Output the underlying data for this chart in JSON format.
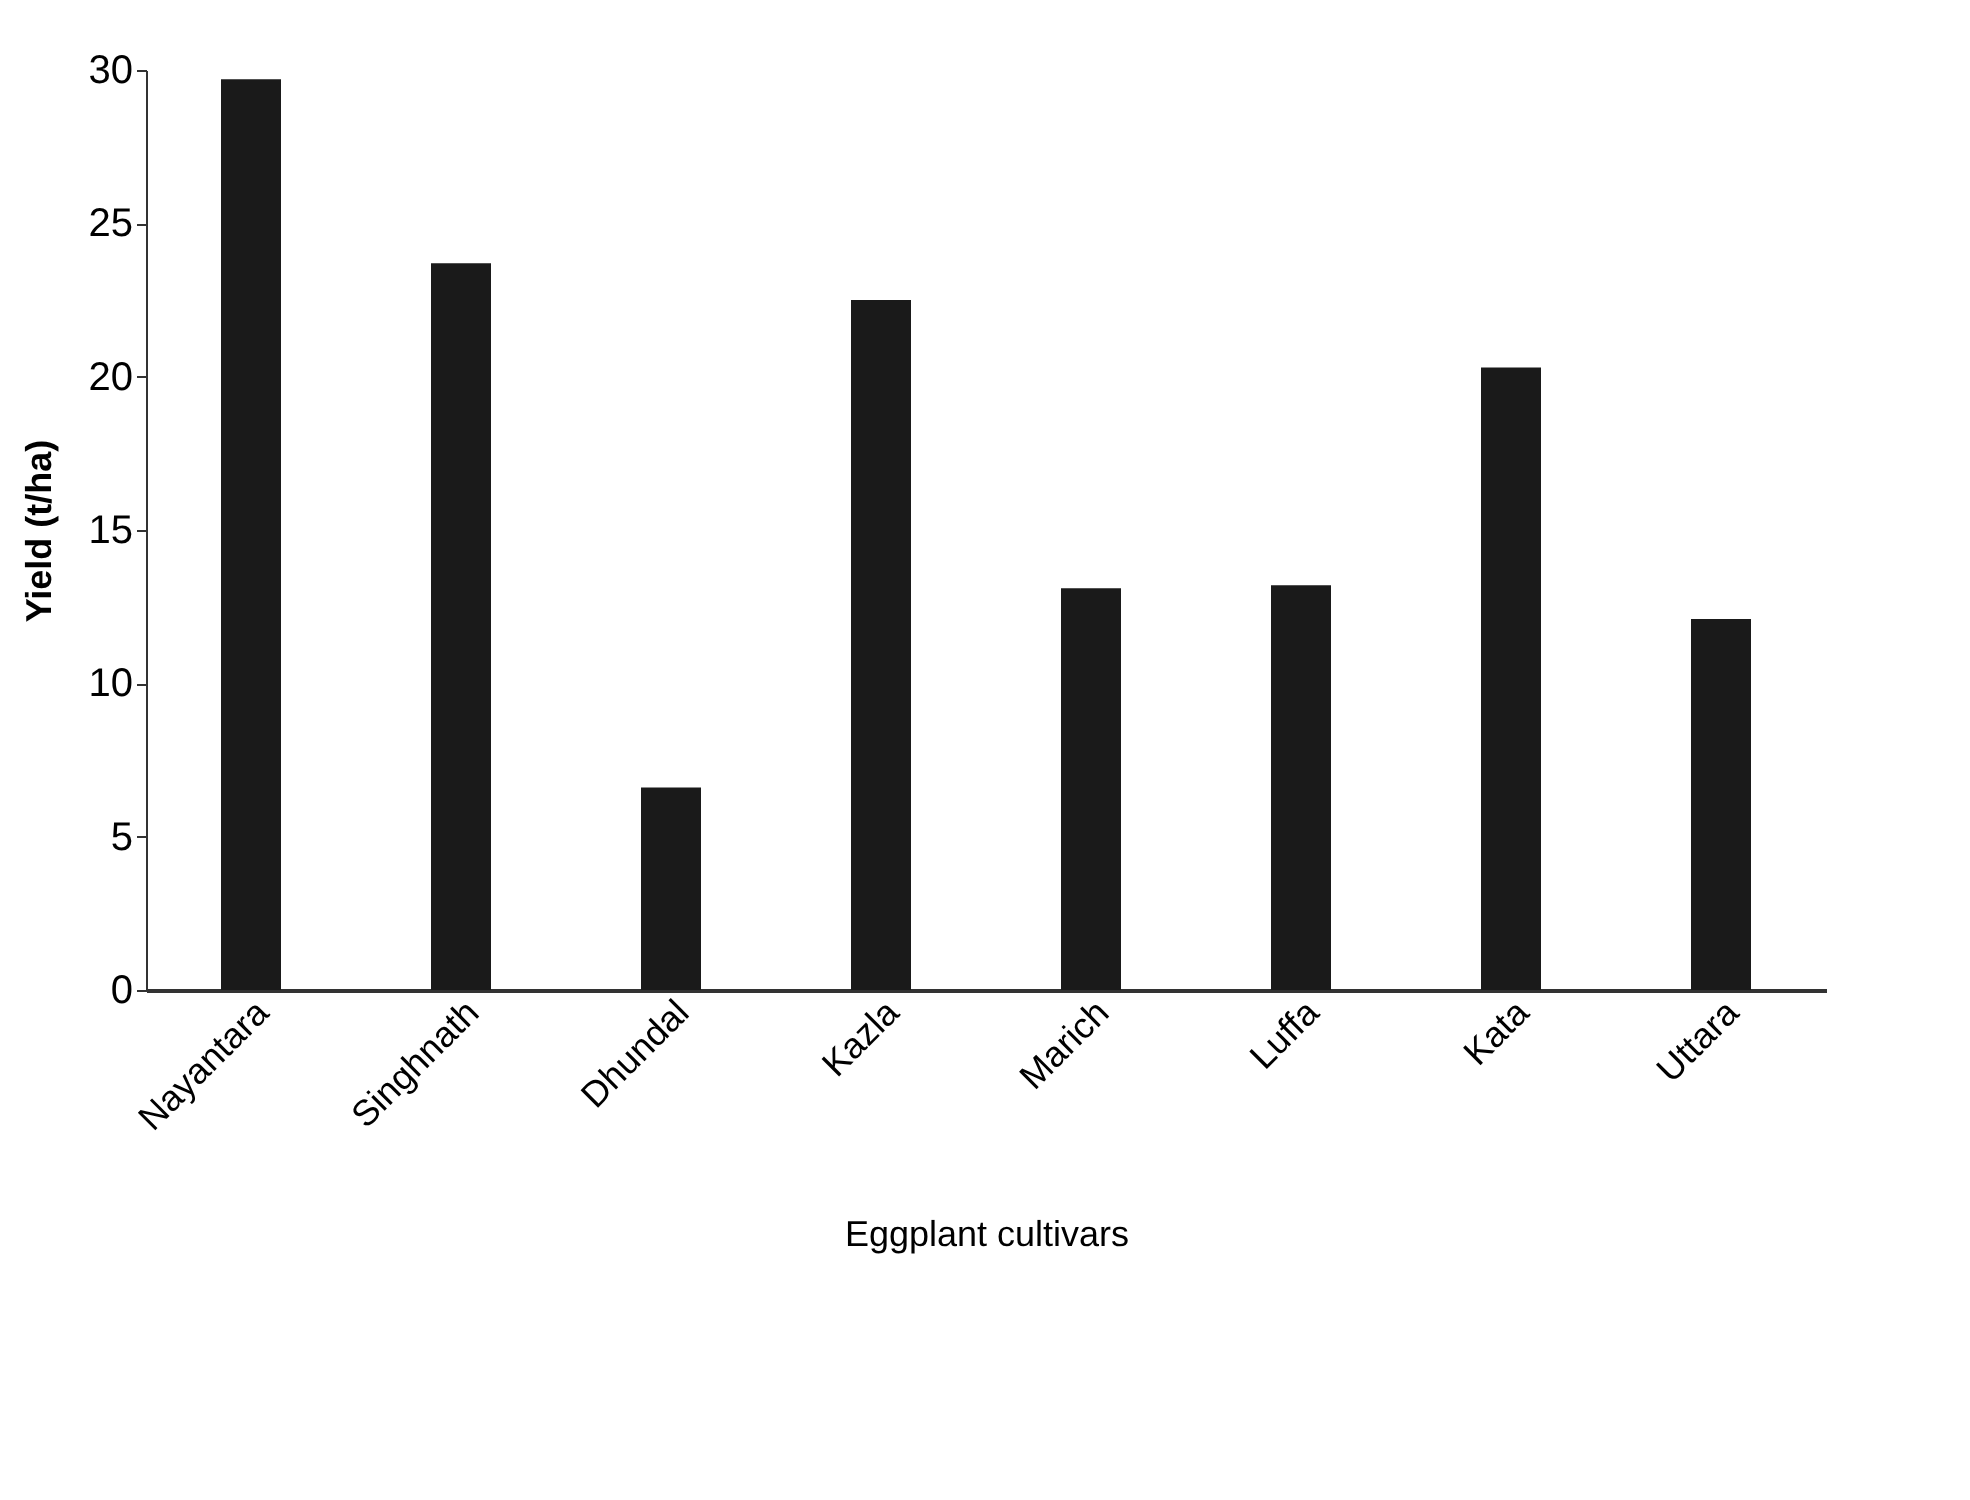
{
  "chart_data": {
    "type": "bar",
    "xlabel": "Eggplant cultivars",
    "ylabel": "Yield (t/ha)",
    "categories": [
      "Nayantara",
      "Singhnath",
      "Dhundal",
      "Kazla",
      "Marich",
      "Luffa",
      "Kata",
      "Uttara"
    ],
    "values": [
      29.7,
      23.7,
      6.6,
      22.5,
      13.1,
      13.2,
      20.3,
      12.1
    ],
    "color": "#1a1a1a",
    "ylim": [
      0,
      30
    ],
    "yticks": [
      0,
      5,
      10,
      15,
      20,
      25,
      30
    ],
    "grid": false
  }
}
